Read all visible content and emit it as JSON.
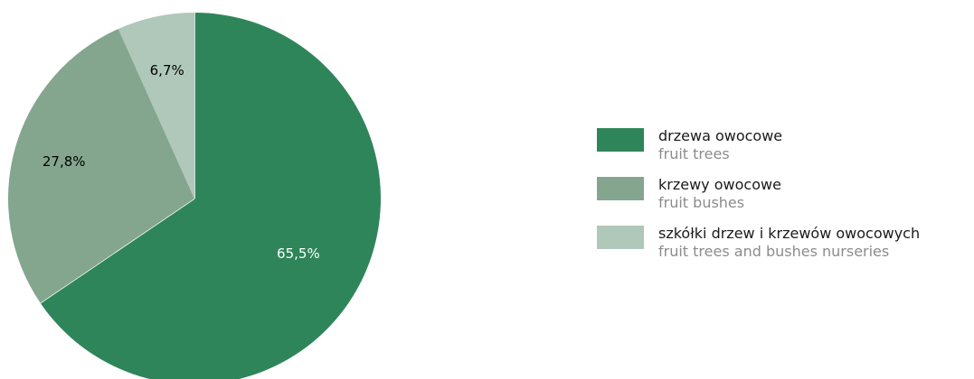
{
  "chart_data": {
    "type": "pie",
    "title": "",
    "slices": [
      {
        "label": "drzewa owocowe",
        "sublabel": "fruit trees",
        "value": 65.5,
        "display": "65,5%",
        "color": "#2f855a",
        "text_color": "#ffffff"
      },
      {
        "label": "krzewy owocowe",
        "sublabel": "fruit bushes",
        "value": 27.8,
        "display": "27,8%",
        "color": "#84a68f",
        "text_color": "#000000"
      },
      {
        "label": "szkółki drzew i krzewów owocowych",
        "sublabel": "fruit trees and bushes nurseries",
        "value": 6.7,
        "display": "6,7%",
        "color": "#afc8b9",
        "text_color": "#000000"
      }
    ],
    "start": "12 o'clock",
    "direction": "clockwise",
    "legend": "right"
  }
}
